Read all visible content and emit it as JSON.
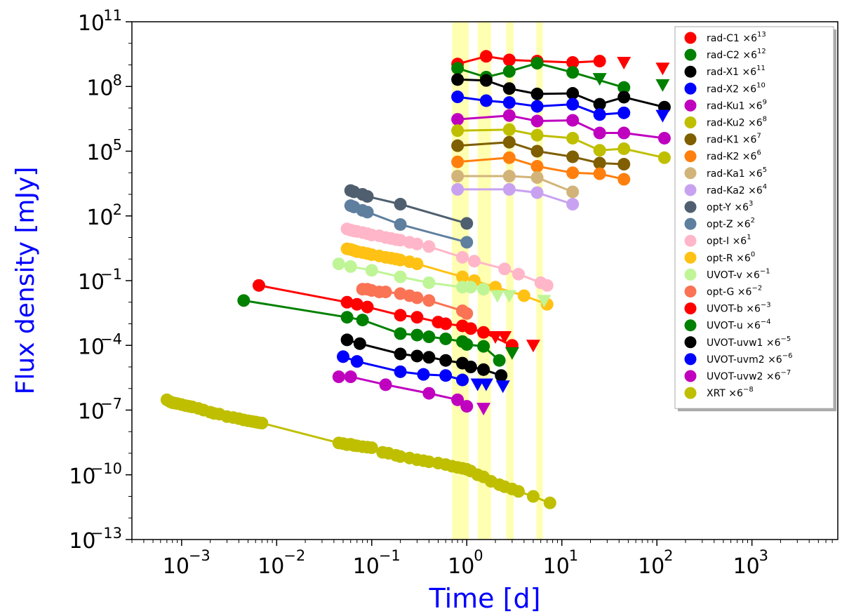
{
  "chart_data": {
    "type": "scatter",
    "xscale": "log",
    "yscale": "log",
    "xlim": [
      0.0003,
      8000
    ],
    "ylim": [
      1e-13,
      100000000000.0
    ],
    "xlabel": "Time [d]",
    "ylabel": "Flux density [mJy]",
    "x_ticks": [
      {
        "value": 0.001,
        "label": "10",
        "exp": "−3"
      },
      {
        "value": 0.01,
        "label": "10",
        "exp": "−2"
      },
      {
        "value": 0.1,
        "label": "10",
        "exp": "−1"
      },
      {
        "value": 1,
        "label": "10",
        "exp": "0"
      },
      {
        "value": 10,
        "label": "10",
        "exp": "1"
      },
      {
        "value": 100,
        "label": "10",
        "exp": "2"
      },
      {
        "value": 1000,
        "label": "10",
        "exp": "3"
      }
    ],
    "y_ticks": [
      {
        "value": 1e-13,
        "label": "10",
        "exp": "−13"
      },
      {
        "value": 1e-10,
        "label": "10",
        "exp": "−10"
      },
      {
        "value": 1e-07,
        "label": "10",
        "exp": "−7"
      },
      {
        "value": 0.0001,
        "label": "10",
        "exp": "−4"
      },
      {
        "value": 0.1,
        "label": "10",
        "exp": "−1"
      },
      {
        "value": 100,
        "label": "10",
        "exp": "2"
      },
      {
        "value": 100000.0,
        "label": "10",
        "exp": "5"
      },
      {
        "value": 100000000.0,
        "label": "10",
        "exp": "8"
      },
      {
        "value": 100000000000.0,
        "label": "10",
        "exp": "11"
      }
    ],
    "highlight_bands": [
      [
        0.7,
        1.05
      ],
      [
        1.3,
        1.8
      ],
      [
        2.6,
        3.1
      ],
      [
        5.4,
        6.3
      ]
    ],
    "legend_position": "top-right",
    "series": [
      {
        "name": "rad-C1",
        "base": "rad-C1 ×6",
        "exp": "13",
        "color": "#ff0000",
        "x": [
          0.8,
          1.6,
          2.8,
          5.5,
          13,
          25
        ],
        "y": [
          1100000000.0,
          2500000000.0,
          1700000000.0,
          1500000000.0,
          1300000000.0,
          1500000000.0
        ],
        "ul_x": [
          45,
          115
        ],
        "ul_y": [
          1300000000.0,
          700000000.0
        ]
      },
      {
        "name": "rad-C2",
        "base": "rad-C2 ×6",
        "exp": "12",
        "color": "#008000",
        "x": [
          0.8,
          1.6,
          2.8,
          5.5,
          13,
          45
        ],
        "y": [
          700000000.0,
          270000000.0,
          500000000.0,
          1200000000.0,
          450000000.0,
          90000000.0
        ],
        "ul_x": [
          25,
          115
        ],
        "ul_y": [
          230000000.0,
          120000000.0
        ]
      },
      {
        "name": "rad-X1",
        "base": "rad-X1 ×6",
        "exp": "11",
        "color": "#000000",
        "x": [
          0.8,
          1.6,
          2.8,
          5.5,
          13,
          25,
          45,
          120
        ],
        "y": [
          210000000.0,
          190000000.0,
          80000000.0,
          45000000.0,
          48000000.0,
          15000000.0,
          32000000.0,
          11000000.0
        ],
        "ul_x": [],
        "ul_y": []
      },
      {
        "name": "rad-X2",
        "base": "rad-X2 ×6",
        "exp": "10",
        "color": "#0000ff",
        "x": [
          0.8,
          1.6,
          2.8,
          5.5,
          13,
          25,
          45
        ],
        "y": [
          33000000.0,
          22000000.0,
          18000000.0,
          12000000.0,
          15000000.0,
          5000000.0,
          6000000.0
        ],
        "ul_x": [
          115
        ],
        "ul_y": [
          4500000.0
        ]
      },
      {
        "name": "rad-Ku1",
        "base": "rad-Ku1 ×6",
        "exp": "9",
        "color": "#bf00bf",
        "x": [
          0.8,
          2.8,
          5.5,
          13,
          25,
          45,
          120
        ],
        "y": [
          3000000.0,
          4500000.0,
          2500000.0,
          2700000.0,
          700000.0,
          700000.0,
          400000.0
        ],
        "ul_x": [],
        "ul_y": []
      },
      {
        "name": "rad-Ku2",
        "base": "rad-Ku2 ×6",
        "exp": "8",
        "color": "#bfbf00",
        "x": [
          0.8,
          2.8,
          5.5,
          13,
          25,
          45,
          120
        ],
        "y": [
          900000.0,
          1000000.0,
          550000.0,
          400000.0,
          110000.0,
          130000.0,
          50000.0
        ],
        "ul_x": [],
        "ul_y": []
      },
      {
        "name": "rad-K1",
        "base": "rad-K1 ×6",
        "exp": "7",
        "color": "#7f5f00",
        "x": [
          0.8,
          2.8,
          5.5,
          13,
          25,
          45
        ],
        "y": [
          180000.0,
          260000.0,
          100000.0,
          55000.0,
          28000.0,
          25000.0
        ],
        "ul_x": [],
        "ul_y": []
      },
      {
        "name": "rad-K2",
        "base": "rad-K2 ×6",
        "exp": "6",
        "color": "#ff7f0e",
        "x": [
          0.8,
          2.8,
          5.5,
          13,
          25,
          45
        ],
        "y": [
          32000.0,
          50000.0,
          20000.0,
          10000.0,
          9000.0,
          5000.0
        ],
        "ul_x": [],
        "ul_y": []
      },
      {
        "name": "rad-Ka1",
        "base": "rad-Ka1 ×6",
        "exp": "5",
        "color": "#d2b47a",
        "x": [
          0.8,
          2.8,
          5.5,
          13
        ],
        "y": [
          7000.0,
          7000.0,
          6000.0,
          1300.0
        ],
        "ul_x": [],
        "ul_y": []
      },
      {
        "name": "rad-Ka2",
        "base": "rad-Ka2 ×6",
        "exp": "4",
        "color": "#c8a2f0",
        "x": [
          0.8,
          2.8,
          5.5,
          13
        ],
        "y": [
          1700.0,
          1700.0,
          1200.0,
          350.0
        ],
        "ul_x": [],
        "ul_y": []
      },
      {
        "name": "opt-Y",
        "base": "opt-Y ×6",
        "exp": "3",
        "color": "#4f5f6f",
        "x": [
          0.06,
          0.065,
          0.08,
          0.09,
          0.2,
          1.0
        ],
        "y": [
          1500.0,
          1300.0,
          1000.0,
          800.0,
          350.0,
          45
        ],
        "ul_x": [],
        "ul_y": []
      },
      {
        "name": "opt-Z",
        "base": "opt-Z ×6",
        "exp": "2",
        "color": "#5f7f9f",
        "x": [
          0.06,
          0.065,
          0.08,
          0.09,
          0.2,
          1.0
        ],
        "y": [
          300.0,
          260.0,
          180.0,
          150.0,
          40,
          6
        ],
        "ul_x": [],
        "ul_y": []
      },
      {
        "name": "opt-I",
        "base": "opt-I ×6",
        "exp": "1",
        "color": "#ffb6c8",
        "x": [
          0.055,
          0.06,
          0.065,
          0.07,
          0.08,
          0.09,
          0.1,
          0.12,
          0.14,
          0.16,
          0.18,
          0.2,
          0.25,
          0.3,
          0.4,
          0.9,
          1.2,
          2.5,
          3.5,
          6,
          7
        ],
        "y": [
          25,
          22,
          20,
          19,
          17,
          15,
          13,
          12,
          10,
          9,
          8,
          7.5,
          6,
          5,
          3.8,
          1.2,
          0.8,
          0.35,
          0.2,
          0.08,
          0.06
        ],
        "ul_x": [],
        "ul_y": []
      },
      {
        "name": "opt-R",
        "base": "opt-R ×6",
        "exp": "0",
        "color": "#ffc214",
        "x": [
          0.055,
          0.06,
          0.065,
          0.07,
          0.08,
          0.09,
          0.1,
          0.12,
          0.14,
          0.16,
          0.18,
          0.2,
          0.25,
          0.3,
          0.9,
          1.2,
          2.0,
          4.0,
          7.0
        ],
        "y": [
          3,
          2.8,
          2.5,
          2.2,
          2,
          1.8,
          1.6,
          1.4,
          1.2,
          1.1,
          1,
          0.9,
          0.75,
          0.6,
          0.15,
          0.1,
          0.05,
          0.02,
          0.008
        ],
        "ul_x": [],
        "ul_y": []
      },
      {
        "name": "UVOT-v",
        "base": "UVOT-v ×6",
        "exp": "−1",
        "color": "#bff596",
        "x": [
          0.045,
          0.06,
          0.1,
          0.2,
          0.4,
          0.9,
          1.1,
          1.5
        ],
        "y": [
          0.6,
          0.45,
          0.3,
          0.15,
          0.08,
          0.05,
          0.05,
          0.04
        ],
        "ul_x": [
          2.1,
          2.8,
          6.5
        ],
        "ul_y": [
          0.02,
          0.02,
          0.012
        ]
      },
      {
        "name": "opt-G",
        "base": "opt-G ×6",
        "exp": "−2",
        "color": "#fa7355",
        "x": [
          0.08,
          0.09,
          0.1,
          0.12,
          0.14,
          0.2,
          0.25,
          0.3,
          0.4,
          0.9,
          1.0
        ],
        "y": [
          0.04,
          0.04,
          0.035,
          0.03,
          0.03,
          0.025,
          0.02,
          0.016,
          0.012,
          0.004,
          0.003
        ],
        "ul_x": [],
        "ul_y": []
      },
      {
        "name": "UVOT-b",
        "base": "UVOT-b ×6",
        "exp": "−3",
        "color": "#ff0000",
        "x": [
          0.0065,
          0.055,
          0.07,
          0.09,
          0.2,
          0.3,
          0.5,
          0.6,
          0.9,
          1.1,
          1.5,
          3.0
        ],
        "y": [
          0.06,
          0.01,
          0.008,
          0.006,
          0.0025,
          0.002,
          0.0012,
          0.001,
          0.0008,
          0.0006,
          0.0004,
          0.0001
        ],
        "ul_x": [
          2.0,
          2.5,
          5.0
        ],
        "ul_y": [
          0.00025,
          0.00025,
          0.0001
        ]
      },
      {
        "name": "UVOT-u",
        "base": "UVOT-u ×6",
        "exp": "−4",
        "color": "#008000",
        "x": [
          0.0045,
          0.055,
          0.08,
          0.2,
          0.3,
          0.4,
          0.6,
          0.9,
          1.0,
          1.5,
          2.2
        ],
        "y": [
          0.012,
          0.002,
          0.0015,
          0.00035,
          0.0003,
          0.00025,
          0.0002,
          0.00015,
          0.00011,
          9e-05,
          2e-05
        ],
        "ul_x": [
          3.0
        ],
        "ul_y": [
          4.5e-05
        ]
      },
      {
        "name": "UVOT-uvw1",
        "base": "UVOT-uvw1 ×6",
        "exp": "−5",
        "color": "#000000",
        "x": [
          0.055,
          0.075,
          0.2,
          0.3,
          0.4,
          0.6,
          0.9,
          1.1,
          1.5,
          2.3
        ],
        "y": [
          0.00018,
          0.00012,
          4e-05,
          3.2e-05,
          2.8e-05,
          2e-05,
          1.5e-05,
          1e-05,
          7.5e-06,
          4e-06
        ],
        "ul_x": [],
        "ul_y": []
      },
      {
        "name": "UVOT-uvm2",
        "base": "UVOT-uvm2 ×6",
        "exp": "−6",
        "color": "#0000ff",
        "x": [
          0.05,
          0.07,
          0.2,
          0.35,
          0.6,
          0.9
        ],
        "y": [
          3e-05,
          1.8e-05,
          6e-06,
          4.5e-06,
          4e-06,
          2.5e-06
        ],
        "ul_x": [
          1.3,
          1.6,
          2.4
        ],
        "ul_y": [
          1.6e-06,
          1.6e-06,
          1.3e-06
        ]
      },
      {
        "name": "UVOT-uvw2",
        "base": "UVOT-uvw2 ×6",
        "exp": "−7",
        "color": "#bf00bf",
        "x": [
          0.045,
          0.06,
          0.14,
          0.4,
          0.8,
          1.0
        ],
        "y": [
          3.5e-06,
          3.5e-06,
          1.5e-06,
          6e-07,
          3e-07,
          1.5e-07
        ],
        "ul_x": [
          1.5
        ],
        "ul_y": [
          1.2e-07
        ]
      },
      {
        "name": "XRT",
        "base": "XRT ×6",
        "exp": "−8",
        "color": "#bfbf00",
        "x": [
          0.0007,
          0.00075,
          0.0008,
          0.00085,
          0.0009,
          0.001,
          0.0011,
          0.0012,
          0.0013,
          0.0015,
          0.0017,
          0.002,
          0.0022,
          0.0025,
          0.003,
          0.0035,
          0.004,
          0.0045,
          0.005,
          0.0055,
          0.006,
          0.0065,
          0.007,
          0.045,
          0.05,
          0.055,
          0.06,
          0.065,
          0.07,
          0.08,
          0.09,
          0.1,
          0.13,
          0.15,
          0.18,
          0.2,
          0.25,
          0.3,
          0.35,
          0.4,
          0.5,
          0.6,
          0.7,
          0.8,
          0.9,
          1.0,
          1.1,
          1.3,
          1.5,
          1.8,
          2.2,
          2.5,
          3.0,
          3.5,
          5.0,
          7.5
        ],
        "y": [
          3e-07,
          2.5e-07,
          2.2e-07,
          2.1e-07,
          2e-07,
          1.8e-07,
          1.6e-07,
          1.5e-07,
          1.4e-07,
          1.2e-07,
          1e-07,
          8e-08,
          7e-08,
          6.5e-08,
          5e-08,
          4.5e-08,
          4e-08,
          3.5e-08,
          3.2e-08,
          3e-08,
          2.8e-08,
          2.6e-08,
          2.5e-08,
          3e-09,
          2.8e-09,
          2.5e-09,
          2.6e-09,
          2.3e-09,
          2.2e-09,
          2e-09,
          1.9e-09,
          1.8e-09,
          1.1e-09,
          1e-09,
          8e-10,
          7e-10,
          6e-10,
          5e-10,
          4.5e-10,
          4e-10,
          3.5e-10,
          3e-10,
          2.5e-10,
          2.2e-10,
          2e-10,
          1.8e-10,
          1.5e-10,
          1e-10,
          8e-11,
          5e-11,
          3.5e-11,
          2.8e-11,
          2.2e-11,
          1.7e-11,
          1e-11,
          5e-12
        ],
        "ul_x": [],
        "ul_y": []
      }
    ]
  }
}
